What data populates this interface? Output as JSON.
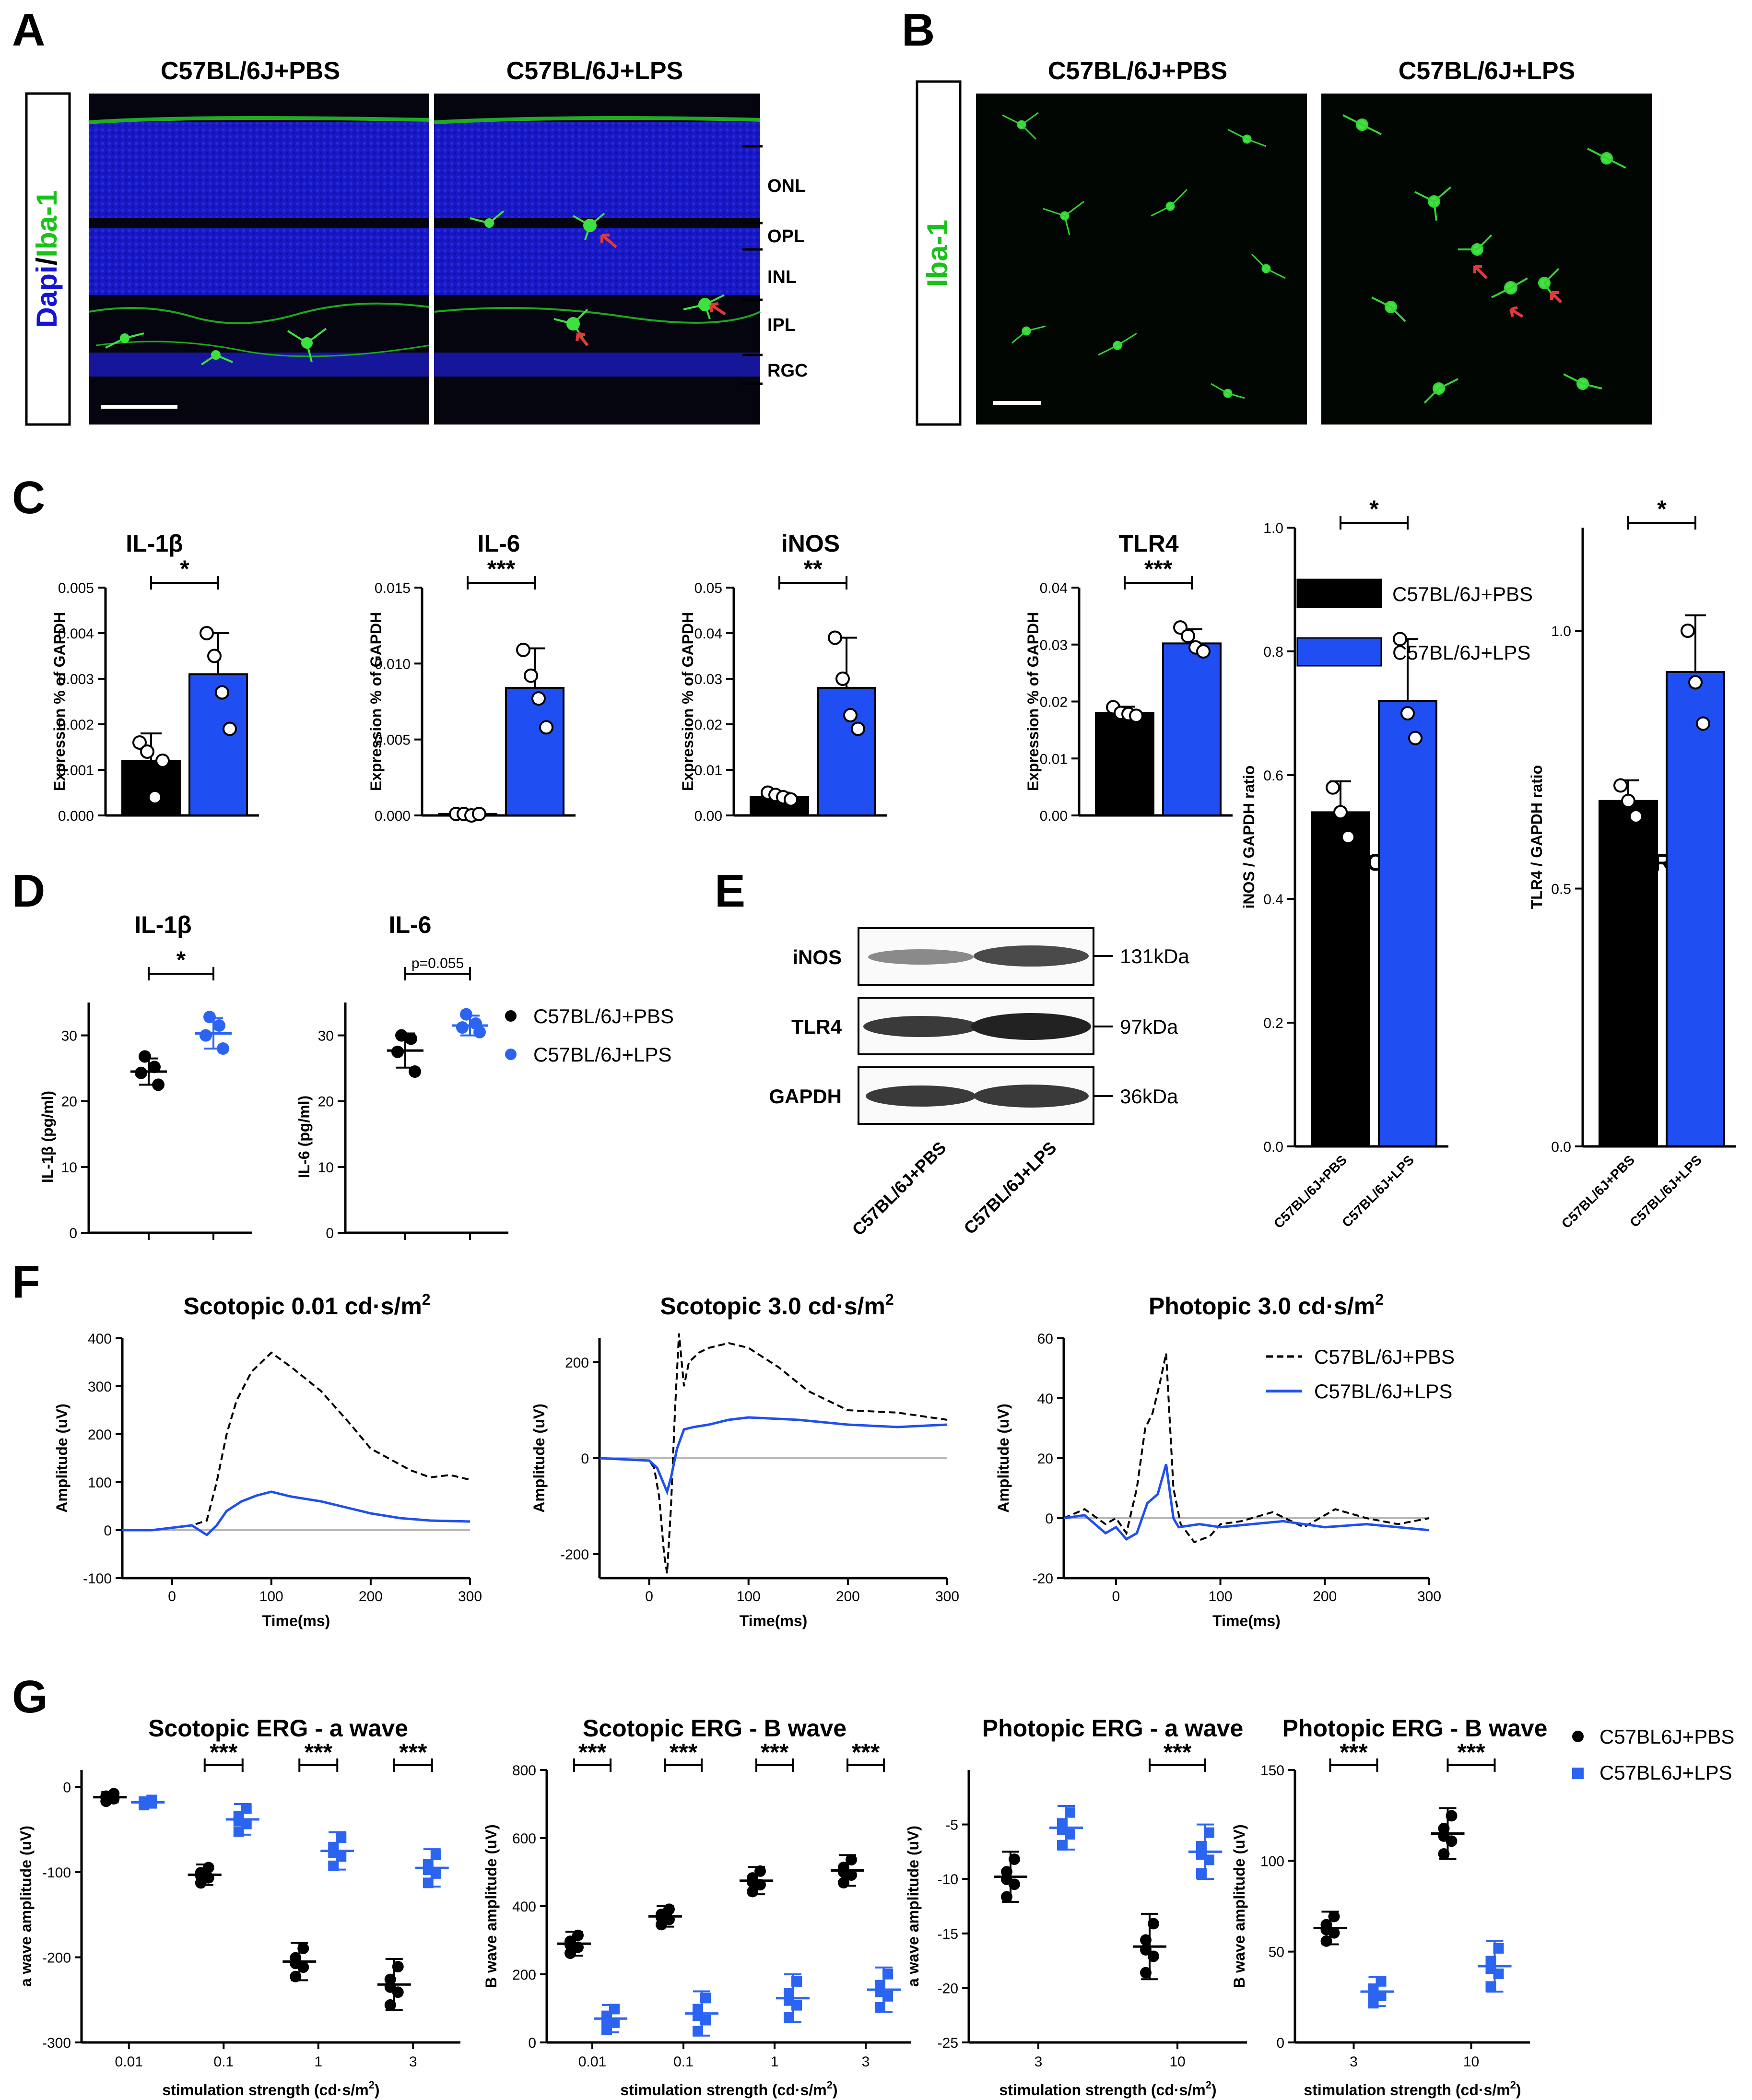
{
  "colors": {
    "pbs": "#000000",
    "lps": "#1f4ff2",
    "lps_point": "#2c64f2",
    "dapi": "#1414d2",
    "iba": "#19c219",
    "arrow": "#e23a3a",
    "zero_line": "#b8b8b8"
  },
  "panel_letters": [
    "A",
    "B",
    "C",
    "D",
    "E",
    "F",
    "G"
  ],
  "panelA": {
    "side_label_part1": "Dapi",
    "side_label_sep": "/",
    "side_label_part2": "Iba-1",
    "titles": [
      "C57BL/6J+PBS",
      "C57BL/6J+LPS"
    ],
    "layers": [
      "ONL",
      "OPL",
      "INL",
      "IPL",
      "RGC"
    ]
  },
  "panelB": {
    "side_label": "Iba-1",
    "titles": [
      "C57BL/6J+PBS",
      "C57BL/6J+LPS"
    ]
  },
  "panelC": {
    "ylabel": "Expression % of GAPDH",
    "legend": [
      "C57BL/6J+PBS",
      "C57BL/6J+LPS"
    ]
  },
  "panelD": {
    "legend": [
      "C57BL/6J+PBS",
      "C57BL/6J+LPS"
    ]
  },
  "panelE": {
    "blot_labels": [
      "iNOS",
      "TLR4",
      "GAPDH"
    ],
    "kda": [
      "131kDa",
      "97kDa",
      "36kDa"
    ],
    "lanes": [
      "C57BL/6J+PBS",
      "C57BL/6J+LPS"
    ]
  },
  "panelF": {
    "legend": [
      "C57BL/6J+PBS",
      "C57BL/6J+LPS"
    ],
    "title_units_base": "m",
    "title_units_exp": "2"
  },
  "panelG": {
    "xlabel": "stimulation strength (cd·s/m",
    "xlabel_exp": "2",
    "xlabel_close": ")",
    "legend": [
      "C57BL6J+PBS",
      "C57BL6J+LPS"
    ]
  },
  "chart_data": [
    {
      "id": "C-IL1b",
      "type": "bar",
      "title": "IL-1β",
      "ylabel": "Expression % of GAPDH",
      "categories": [
        "C57BL/6J+PBS",
        "C57BL/6J+LPS"
      ],
      "values": [
        0.0012,
        0.0031
      ],
      "errors": [
        0.0006,
        0.0009
      ],
      "ylim": [
        0,
        0.005
      ],
      "yticks": [
        "0.000",
        "0.001",
        "0.002",
        "0.003",
        "0.004",
        "0.005"
      ],
      "points": [
        [
          0.0016,
          0.0014,
          0.0004,
          0.0012
        ],
        [
          0.004,
          0.0035,
          0.0027,
          0.0019
        ]
      ],
      "significance": "*"
    },
    {
      "id": "C-IL6",
      "type": "bar",
      "title": "IL-6",
      "ylabel": "Expression % of GAPDH",
      "categories": [
        "C57BL/6J+PBS",
        "C57BL/6J+LPS"
      ],
      "values": [
        0.0001,
        0.0084
      ],
      "errors": [
        5e-05,
        0.0026
      ],
      "ylim": [
        0,
        0.015
      ],
      "yticks": [
        "0.000",
        "0.005",
        "0.010",
        "0.015"
      ],
      "points": [
        [
          0.0001,
          0.0001,
          0.0,
          0.0001
        ],
        [
          0.0109,
          0.0092,
          0.0077,
          0.0058
        ]
      ],
      "significance": "***"
    },
    {
      "id": "C-iNOS",
      "type": "bar",
      "title": "iNOS",
      "ylabel": "Expression % of GAPDH",
      "categories": [
        "C57BL/6J+PBS",
        "C57BL/6J+LPS"
      ],
      "values": [
        0.004,
        0.028
      ],
      "errors": [
        0.001,
        0.011
      ],
      "ylim": [
        0,
        0.05
      ],
      "yticks": [
        "0.00",
        "0.01",
        "0.02",
        "0.03",
        "0.04",
        "0.05"
      ],
      "points": [
        [
          0.005,
          0.0045,
          0.004,
          0.0035
        ],
        [
          0.039,
          0.03,
          0.022,
          0.019
        ]
      ],
      "significance": "**"
    },
    {
      "id": "C-TLR4",
      "type": "bar",
      "title": "TLR4",
      "ylabel": "Expression % of GAPDH",
      "categories": [
        "C57BL/6J+PBS",
        "C57BL/6J+LPS"
      ],
      "values": [
        0.018,
        0.0302
      ],
      "errors": [
        0.0011,
        0.0025
      ],
      "ylim": [
        0,
        0.04
      ],
      "yticks": [
        "0.00",
        "0.01",
        "0.02",
        "0.03",
        "0.04"
      ],
      "points": [
        [
          0.019,
          0.018,
          0.0178,
          0.0175
        ],
        [
          0.033,
          0.0315,
          0.0295,
          0.0288
        ]
      ],
      "significance": "***"
    },
    {
      "id": "D-IL1b",
      "type": "scatter",
      "title": "IL-1β",
      "ylabel": "IL-1β (pg/ml)",
      "categories": [
        "C57BL/6J+PBS",
        "C57BL/6J+LPS"
      ],
      "means": [
        24.5,
        30.3
      ],
      "sd": [
        2.0,
        2.3
      ],
      "ylim": [
        0,
        35
      ],
      "yticks": [
        "0",
        "10",
        "20",
        "30"
      ],
      "points": [
        [
          26.8,
          25.2,
          24.3,
          22.5
        ],
        [
          32.8,
          31.5,
          30.0,
          28.0
        ]
      ],
      "significance": "*"
    },
    {
      "id": "D-IL6",
      "type": "scatter",
      "title": "IL-6",
      "ylabel": "IL-6 (pg/ml)",
      "categories": [
        "C57BL/6J+PBS",
        "C57BL/6J+LPS"
      ],
      "means": [
        27.7,
        31.5
      ],
      "sd": [
        2.6,
        1.5
      ],
      "ylim": [
        0,
        35
      ],
      "yticks": [
        "0",
        "10",
        "20",
        "30"
      ],
      "points": [
        [
          30.0,
          29.5,
          27.5,
          24.5
        ],
        [
          33.2,
          31.8,
          31.2,
          30.5
        ]
      ],
      "significance": "p=0.055"
    },
    {
      "id": "E-iNOS",
      "type": "bar",
      "title": "iNOS",
      "ylabel": "iNOS / GAPDH ratio",
      "categories": [
        "C57BL/6J+PBS",
        "C57BL/6J+LPS"
      ],
      "values": [
        0.54,
        0.72
      ],
      "errors": [
        0.05,
        0.1
      ],
      "ylim": [
        0,
        1.0
      ],
      "yticks": [
        "0.0",
        "0.2",
        "0.4",
        "0.6",
        "0.8",
        "1.0"
      ],
      "points": [
        [
          0.58,
          0.54,
          0.5
        ],
        [
          0.82,
          0.7,
          0.66
        ]
      ],
      "significance": "*"
    },
    {
      "id": "E-TLR4",
      "type": "bar",
      "title": "TLR4",
      "ylabel": "TLR4 / GAPDH ratio",
      "categories": [
        "C57BL/6J+PBS",
        "C57BL/6J+LPS"
      ],
      "values": [
        0.67,
        0.92
      ],
      "errors": [
        0.04,
        0.11
      ],
      "ylim": [
        0,
        1.2
      ],
      "yticks": [
        "0.0",
        "0.5",
        "1.0"
      ],
      "points": [
        [
          0.7,
          0.67,
          0.64
        ],
        [
          1.0,
          0.9,
          0.82
        ]
      ],
      "significance": "*"
    },
    {
      "id": "F-scot001",
      "type": "line",
      "title_main": "Scotopic 0.01 cd·s/",
      "ylabel": "Amplitude (uV)",
      "xlabel": "Time(ms)",
      "xlim": [
        -50,
        300
      ],
      "ylim": [
        -100,
        400
      ],
      "xticks": [
        0,
        100,
        200,
        300
      ],
      "yticks": [
        -100,
        0,
        100,
        200,
        300,
        400
      ],
      "series": [
        {
          "name": "C57BL/6J+PBS",
          "x": [
            -50,
            -20,
            0,
            20,
            35,
            45,
            55,
            65,
            80,
            100,
            120,
            150,
            180,
            200,
            240,
            260,
            280,
            300
          ],
          "values": [
            0,
            0,
            5,
            10,
            20,
            100,
            200,
            270,
            330,
            370,
            340,
            290,
            220,
            170,
            125,
            110,
            115,
            105
          ]
        },
        {
          "name": "C57BL/6J+LPS",
          "x": [
            -50,
            -20,
            0,
            20,
            35,
            45,
            55,
            70,
            85,
            100,
            120,
            150,
            180,
            200,
            230,
            260,
            300
          ],
          "values": [
            0,
            0,
            5,
            10,
            -10,
            10,
            40,
            60,
            72,
            80,
            70,
            60,
            45,
            35,
            25,
            20,
            18
          ]
        }
      ]
    },
    {
      "id": "F-scot3",
      "type": "line",
      "title_main": "Scotopic 3.0 cd·s/",
      "ylabel": "Amplitude (uV)",
      "xlabel": "Time(ms)",
      "xlim": [
        -50,
        300
      ],
      "ylim": [
        -250,
        250
      ],
      "xticks": [
        0,
        100,
        200,
        300
      ],
      "yticks": [
        -200,
        0,
        200
      ],
      "series": [
        {
          "name": "C57BL/6J+PBS",
          "x": [
            -50,
            0,
            5,
            10,
            15,
            18,
            22,
            26,
            30,
            35,
            40,
            50,
            60,
            80,
            100,
            130,
            160,
            200,
            250,
            300
          ],
          "values": [
            0,
            -5,
            -20,
            -80,
            -200,
            -240,
            -100,
            100,
            260,
            150,
            200,
            220,
            230,
            240,
            230,
            190,
            140,
            100,
            95,
            80
          ]
        },
        {
          "name": "C57BL/6J+LPS",
          "x": [
            -50,
            0,
            8,
            14,
            18,
            22,
            28,
            35,
            45,
            60,
            80,
            100,
            150,
            200,
            250,
            300
          ],
          "values": [
            0,
            -5,
            -20,
            -50,
            -70,
            -40,
            20,
            60,
            65,
            70,
            80,
            85,
            80,
            70,
            65,
            70
          ]
        }
      ]
    },
    {
      "id": "F-phot3",
      "type": "line",
      "title_main": "Photopic 3.0 cd·s/",
      "ylabel": "Amplitude (uV)",
      "xlabel": "Time(ms)",
      "xlim": [
        -50,
        300
      ],
      "ylim": [
        -20,
        60
      ],
      "xticks": [
        0,
        100,
        200,
        300
      ],
      "yticks": [
        -20,
        0,
        20,
        40,
        60
      ],
      "series": [
        {
          "name": "C57BL/6J+PBS",
          "x": [
            -50,
            -30,
            -10,
            0,
            10,
            20,
            28,
            35,
            42,
            48,
            55,
            62,
            75,
            90,
            100,
            120,
            150,
            180,
            210,
            240,
            270,
            300
          ],
          "values": [
            0,
            3,
            -2,
            0,
            -5,
            10,
            30,
            35,
            45,
            55,
            10,
            -2,
            -8,
            -6,
            -2,
            -1,
            2,
            -3,
            3,
            0,
            -2,
            0
          ]
        },
        {
          "name": "C57BL/6J+LPS",
          "x": [
            -50,
            -30,
            -10,
            0,
            10,
            20,
            30,
            40,
            48,
            55,
            60,
            80,
            100,
            130,
            160,
            200,
            240,
            270,
            300
          ],
          "values": [
            0,
            1,
            -5,
            -3,
            -7,
            -5,
            5,
            8,
            18,
            0,
            -3,
            -2,
            -3,
            -2,
            -1,
            -3,
            -2,
            -3,
            -4
          ]
        }
      ]
    },
    {
      "id": "G-scot-a",
      "type": "scatter",
      "title": "Scotopic ERG - a wave",
      "ylabel": "a wave amplitude (uV)",
      "categories": [
        "0.01",
        "0.1",
        "1",
        "3"
      ],
      "ylim": [
        -300,
        20
      ],
      "yticks": [
        -300,
        -200,
        -100,
        0
      ],
      "series": [
        {
          "name": "C57BL6J+PBS",
          "means": [
            -12,
            -103,
            -205,
            -232
          ],
          "sd": [
            6,
            12,
            22,
            30
          ]
        },
        {
          "name": "C57BL6J+LPS",
          "means": [
            -18,
            -38,
            -75,
            -95
          ],
          "sd": [
            4,
            18,
            22,
            22
          ]
        }
      ],
      "significance": [
        "",
        "***",
        "***",
        "***"
      ]
    },
    {
      "id": "G-scot-b",
      "type": "scatter",
      "title": "Scotopic ERG - B wave",
      "ylabel": "B wave amplitude (uV)",
      "categories": [
        "0.01",
        "0.1",
        "1",
        "3"
      ],
      "ylim": [
        0,
        800
      ],
      "yticks": [
        0,
        200,
        400,
        600,
        800
      ],
      "series": [
        {
          "name": "C57BL6J+PBS",
          "means": [
            290,
            370,
            475,
            505
          ],
          "sd": [
            35,
            30,
            40,
            45
          ]
        },
        {
          "name": "C57BL6J+LPS",
          "means": [
            70,
            85,
            130,
            155
          ],
          "sd": [
            40,
            65,
            70,
            65
          ]
        }
      ],
      "significance": [
        "***",
        "***",
        "***",
        "***"
      ]
    },
    {
      "id": "G-phot-a",
      "type": "scatter",
      "title": "Photopic ERG - a wave",
      "ylabel": "a wave amplitude (uV)",
      "categories": [
        "3",
        "10"
      ],
      "ylim": [
        -25,
        0
      ],
      "yticks": [
        -25,
        -20,
        -15,
        -10,
        -5
      ],
      "series": [
        {
          "name": "C57BL6J+PBS",
          "means": [
            -9.8,
            -16.2
          ],
          "sd": [
            2.3,
            3.0
          ]
        },
        {
          "name": "C57BL6J+LPS",
          "means": [
            -5.3,
            -7.5
          ],
          "sd": [
            2.0,
            2.5
          ]
        }
      ],
      "significance": [
        "",
        "***"
      ]
    },
    {
      "id": "G-phot-b",
      "type": "scatter",
      "title": "Photopic ERG - B wave",
      "ylabel": "B wave amplitude (uV)",
      "categories": [
        "3",
        "10"
      ],
      "ylim": [
        0,
        150
      ],
      "yticks": [
        0,
        50,
        100,
        150
      ],
      "series": [
        {
          "name": "C57BL6J+PBS",
          "means": [
            63,
            115
          ],
          "sd": [
            9,
            14
          ]
        },
        {
          "name": "C57BL6J+LPS",
          "means": [
            28,
            42
          ],
          "sd": [
            8,
            14
          ]
        }
      ],
      "significance": [
        "***",
        "***"
      ]
    }
  ]
}
